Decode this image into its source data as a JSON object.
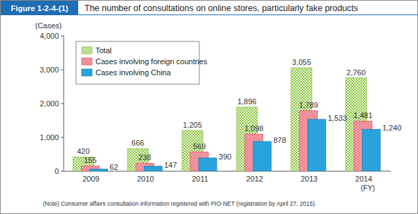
{
  "chart_data": {
    "type": "bar",
    "title": "The number of consultations on online stores, particularly fake products",
    "annotations": [
      "Figure 1-2-4-(1)",
      "(Note)  Consumer affairs consultation information registered with PIO-NET (registration by April 27, 2015)."
    ],
    "y_label": "(Cases)",
    "x_label": "(FY)",
    "categories": [
      "2009",
      "2010",
      "2011",
      "2012",
      "2013",
      "2014"
    ],
    "series": [
      {
        "name": "Total",
        "color": "#8cc63f",
        "values": [
          420,
          666,
          1205,
          1896,
          3055,
          2760
        ],
        "value_labels": [
          "420",
          "666",
          "1,205",
          "1,896",
          "3,055",
          "2,760"
        ]
      },
      {
        "name": "Cases involving foreign countries",
        "color": "#f4a0ab",
        "values": [
          155,
          238,
          569,
          1098,
          1789,
          1481
        ],
        "value_labels": [
          "155",
          "238",
          "569",
          "1,098",
          "1,789",
          "1,481"
        ]
      },
      {
        "name": "Cases involving China",
        "color": "#29a3dc",
        "values": [
          62,
          147,
          390,
          878,
          1533,
          1240
        ],
        "value_labels": [
          "62",
          "147",
          "390",
          "878",
          "1,533",
          "1,240"
        ]
      }
    ],
    "ylim": [
      0,
      4000
    ],
    "yticks": [
      0,
      {
        "value": 1000,
        "label": "1,000"
      },
      {
        "value": 2000,
        "label": "2,000"
      },
      {
        "value": 3000,
        "label": "3,000"
      },
      {
        "value": 4000,
        "label": "4,000"
      }
    ],
    "grid": false,
    "legend": "upper left",
    "data_labels": true
  }
}
